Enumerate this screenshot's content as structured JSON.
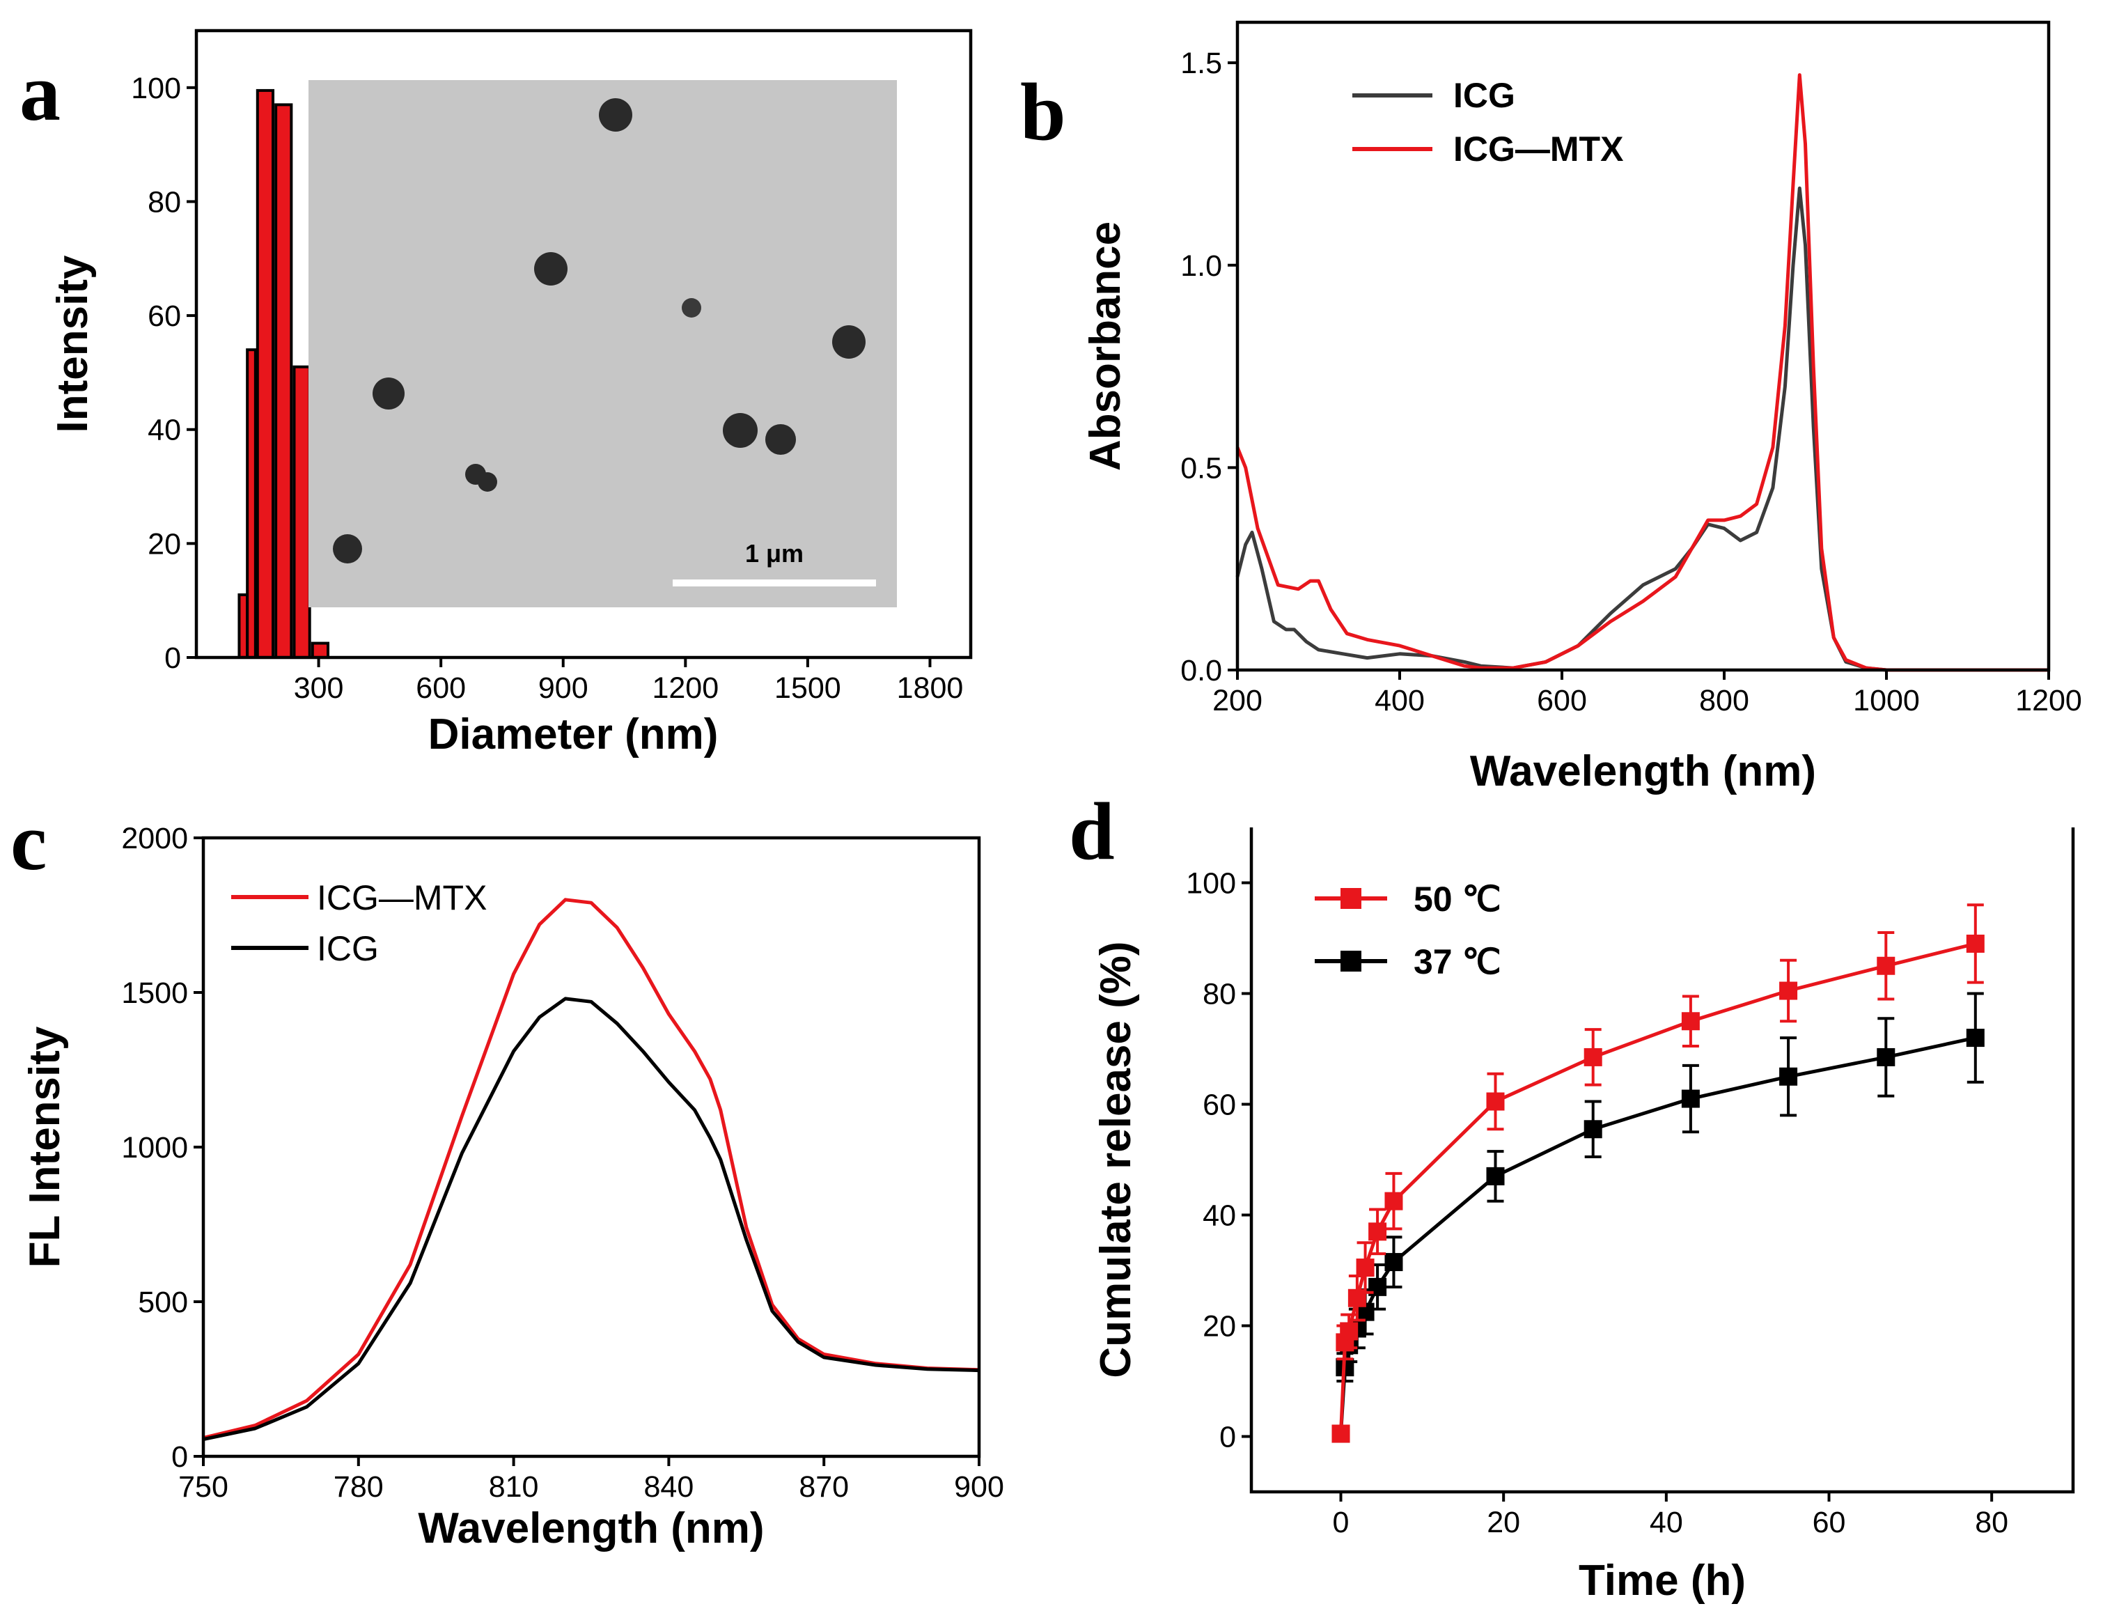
{
  "panels": {
    "a": "a",
    "b": "b",
    "c": "c",
    "d": "d"
  },
  "colors": {
    "red": "#e8161c",
    "black": "#000000",
    "gray": "#3c3c3c"
  },
  "tem_inset": {
    "scale_label": "1 μm"
  },
  "chart_data": [
    {
      "panel": "a",
      "type": "bar",
      "xlabel": "Diameter (nm)",
      "ylabel": "Intensity",
      "xlim": [
        0,
        1900
      ],
      "ylim": [
        0,
        110
      ],
      "xticks": [
        300,
        600,
        900,
        1200,
        1500,
        1800
      ],
      "yticks": [
        0,
        20,
        40,
        60,
        80,
        100
      ],
      "bins": [
        {
          "x": 105,
          "w": 20,
          "y": 11
        },
        {
          "x": 125,
          "w": 20,
          "y": 54
        },
        {
          "x": 150,
          "w": 38,
          "y": 99.5
        },
        {
          "x": 195,
          "w": 38,
          "y": 97
        },
        {
          "x": 240,
          "w": 38,
          "y": 51
        },
        {
          "x": 285,
          "w": 38,
          "y": 2.5
        }
      ]
    },
    {
      "panel": "b",
      "type": "line",
      "xlabel": "Wavelength (nm)",
      "ylabel": "Absorbance",
      "xlim": [
        200,
        1200
      ],
      "ylim": [
        0,
        1.6
      ],
      "xticks": [
        200,
        400,
        600,
        800,
        1000,
        1200
      ],
      "yticks": [
        0.0,
        0.5,
        1.0,
        1.5
      ],
      "ytick_labels": [
        "0.0",
        "0.5",
        "1.0",
        "1.5"
      ],
      "legend": [
        "ICG",
        "ICG—MTX"
      ],
      "series": [
        {
          "name": "ICG",
          "color": "#3c3c3c",
          "x": [
            200,
            210,
            218,
            230,
            245,
            260,
            270,
            285,
            300,
            330,
            360,
            400,
            440,
            480,
            500,
            540,
            580,
            620,
            660,
            700,
            740,
            760,
            780,
            800,
            820,
            840,
            860,
            875,
            885,
            893,
            900,
            910,
            920,
            935,
            950,
            975,
            1000,
            1100,
            1200
          ],
          "y": [
            0.23,
            0.31,
            0.34,
            0.25,
            0.12,
            0.1,
            0.1,
            0.07,
            0.05,
            0.04,
            0.03,
            0.04,
            0.035,
            0.02,
            0.01,
            0.005,
            0.02,
            0.06,
            0.14,
            0.21,
            0.25,
            0.3,
            0.36,
            0.35,
            0.32,
            0.34,
            0.45,
            0.7,
            1.0,
            1.19,
            1.05,
            0.6,
            0.25,
            0.08,
            0.02,
            0.005,
            0.0,
            0.0,
            0.0
          ]
        },
        {
          "name": "ICG—MTX",
          "color": "#e8161c",
          "x": [
            200,
            210,
            225,
            250,
            275,
            290,
            300,
            315,
            335,
            360,
            400,
            440,
            480,
            500,
            540,
            580,
            620,
            660,
            700,
            740,
            760,
            780,
            800,
            820,
            840,
            860,
            875,
            885,
            893,
            900,
            910,
            920,
            935,
            950,
            975,
            1000,
            1100,
            1200
          ],
          "y": [
            0.55,
            0.5,
            0.35,
            0.21,
            0.2,
            0.22,
            0.22,
            0.15,
            0.09,
            0.075,
            0.06,
            0.035,
            0.01,
            0.005,
            0.005,
            0.02,
            0.06,
            0.12,
            0.17,
            0.23,
            0.3,
            0.37,
            0.37,
            0.38,
            0.41,
            0.55,
            0.85,
            1.2,
            1.47,
            1.3,
            0.75,
            0.3,
            0.08,
            0.025,
            0.005,
            0.0,
            0.0,
            0.0
          ]
        }
      ]
    },
    {
      "panel": "c",
      "type": "line",
      "xlabel": "Wavelength (nm)",
      "ylabel": "FL Intensity",
      "xlim": [
        750,
        900
      ],
      "ylim": [
        0,
        2000
      ],
      "xticks": [
        750,
        780,
        810,
        840,
        870,
        900
      ],
      "yticks": [
        0,
        500,
        1000,
        1500,
        2000
      ],
      "legend": [
        "ICG—MTX",
        "ICG"
      ],
      "series": [
        {
          "name": "ICG—MTX",
          "color": "#e8161c",
          "x": [
            750,
            760,
            770,
            780,
            790,
            800,
            810,
            815,
            820,
            825,
            830,
            835,
            840,
            845,
            848,
            850,
            855,
            860,
            865,
            870,
            880,
            890,
            900
          ],
          "y": [
            60,
            100,
            180,
            330,
            620,
            1100,
            1560,
            1720,
            1800,
            1790,
            1710,
            1580,
            1430,
            1310,
            1220,
            1120,
            740,
            490,
            380,
            330,
            300,
            285,
            280
          ]
        },
        {
          "name": "ICG",
          "color": "#000000",
          "x": [
            750,
            760,
            770,
            780,
            790,
            800,
            810,
            815,
            820,
            825,
            830,
            835,
            840,
            845,
            848,
            850,
            855,
            860,
            865,
            870,
            880,
            890,
            900
          ],
          "y": [
            55,
            90,
            160,
            300,
            560,
            980,
            1310,
            1420,
            1480,
            1470,
            1400,
            1310,
            1210,
            1120,
            1030,
            960,
            700,
            470,
            370,
            320,
            295,
            282,
            278
          ]
        }
      ]
    },
    {
      "panel": "d",
      "type": "line",
      "xlabel": "Time (h)",
      "ylabel": "Cumulate release (%)",
      "xlim": [
        -11,
        90
      ],
      "ylim": [
        -10,
        110
      ],
      "xticks": [
        0,
        20,
        40,
        60,
        80
      ],
      "yticks": [
        0,
        20,
        40,
        60,
        80,
        100
      ],
      "legend": [
        "50 ℃",
        "37 ℃"
      ],
      "series": [
        {
          "name": "50 ℃",
          "color": "#e8161c",
          "x": [
            0,
            0.5,
            1,
            2,
            3,
            4.5,
            6.5,
            19,
            31,
            43,
            55,
            67,
            78
          ],
          "y": [
            0.5,
            17,
            19,
            25,
            30.5,
            37,
            42.5,
            60.5,
            68.5,
            75,
            80.5,
            85,
            89
          ],
          "err": [
            0.5,
            3,
            3,
            4,
            4.5,
            4,
            5,
            5,
            5,
            4.5,
            5.5,
            6,
            7
          ]
        },
        {
          "name": "37 ℃",
          "color": "#000000",
          "x": [
            0,
            0.5,
            1,
            2,
            3,
            4.5,
            6.5,
            19,
            31,
            43,
            55,
            67,
            78
          ],
          "y": [
            0.5,
            12.5,
            16.5,
            19.5,
            22.5,
            27,
            31.5,
            47,
            55.5,
            61,
            65,
            68.5,
            72
          ],
          "err": [
            0.5,
            2.5,
            3,
            3.5,
            4,
            4,
            4.5,
            4.5,
            5,
            6,
            7,
            7,
            8
          ]
        }
      ]
    }
  ]
}
